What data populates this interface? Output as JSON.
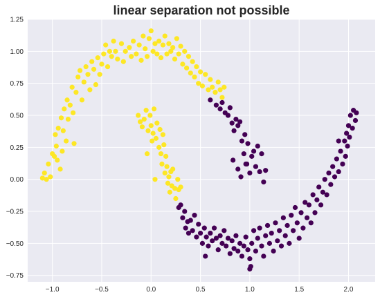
{
  "chart_data": {
    "type": "scatter",
    "title": "linear separation not possible",
    "xlabel": "",
    "ylabel": "",
    "xlim": [
      -1.25,
      2.27
    ],
    "ylim": [
      -0.8,
      1.25
    ],
    "xticks": [
      -1.0,
      -0.5,
      0.0,
      0.5,
      1.0,
      1.5,
      2.0
    ],
    "xtick_labels": [
      "−1.0",
      "−0.5",
      "0.0",
      "0.5",
      "1.0",
      "1.5",
      "2.0"
    ],
    "yticks": [
      -0.75,
      -0.5,
      -0.25,
      0.0,
      0.25,
      0.5,
      0.75,
      1.0,
      1.25
    ],
    "ytick_labels": [
      "−0.75",
      "−0.50",
      "−0.25",
      "0.00",
      "0.25",
      "0.50",
      "0.75",
      "1.00",
      "1.25"
    ],
    "grid": true,
    "background_color": "#eaeaf2",
    "grid_color": "#ffffff",
    "series": [
      {
        "color": "#fde725",
        "points": [
          [
            -1.1,
            0.01
          ],
          [
            -1.08,
            0.05
          ],
          [
            -1.06,
            0.0
          ],
          [
            -1.04,
            0.12
          ],
          [
            -1.02,
            0.02
          ],
          [
            -1.0,
            0.2
          ],
          [
            -0.98,
            0.18
          ],
          [
            -0.96,
            0.26
          ],
          [
            -0.97,
            0.35
          ],
          [
            -0.95,
            0.15
          ],
          [
            -0.94,
            0.4
          ],
          [
            -0.92,
            0.08
          ],
          [
            -0.91,
            0.48
          ],
          [
            -0.9,
            0.22
          ],
          [
            -0.89,
            0.38
          ],
          [
            -0.88,
            0.55
          ],
          [
            -0.86,
            0.3
          ],
          [
            -0.85,
            0.62
          ],
          [
            -0.84,
            0.47
          ],
          [
            -0.82,
            0.58
          ],
          [
            -0.8,
            0.72
          ],
          [
            -0.79,
            0.52
          ],
          [
            -0.78,
            0.28
          ],
          [
            -0.76,
            0.68
          ],
          [
            -0.74,
            0.8
          ],
          [
            -0.72,
            0.85
          ],
          [
            -0.7,
            0.62
          ],
          [
            -0.68,
            0.76
          ],
          [
            -0.66,
            0.88
          ],
          [
            -0.64,
            0.82
          ],
          [
            -0.62,
            0.7
          ],
          [
            -0.6,
            0.92
          ],
          [
            -0.58,
            0.86
          ],
          [
            -0.56,
            0.74
          ],
          [
            -0.54,
            0.95
          ],
          [
            -0.52,
            0.82
          ],
          [
            -0.5,
            0.9
          ],
          [
            -0.48,
            0.98
          ],
          [
            -0.46,
            1.05
          ],
          [
            -0.44,
            0.88
          ],
          [
            -0.42,
            1.0
          ],
          [
            -0.4,
            0.96
          ],
          [
            -0.38,
            1.08
          ],
          [
            -0.36,
            1.0
          ],
          [
            -0.34,
            0.94
          ],
          [
            -0.3,
            1.06
          ],
          [
            -0.28,
            0.92
          ],
          [
            -0.26,
            1.0
          ],
          [
            -0.22,
            1.03
          ],
          [
            -0.2,
            0.96
          ],
          [
            -0.18,
            1.08
          ],
          [
            -0.15,
            0.98
          ],
          [
            -0.12,
            1.05
          ],
          [
            -0.1,
            0.93
          ],
          [
            -0.08,
            1.12
          ],
          [
            -0.06,
            1.02
          ],
          [
            -0.04,
            0.96
          ],
          [
            -0.02,
            1.1
          ],
          [
            0.0,
            1.16
          ],
          [
            0.02,
            1.0
          ],
          [
            0.04,
            1.06
          ],
          [
            0.06,
            0.98
          ],
          [
            0.08,
            1.08
          ],
          [
            0.1,
            0.95
          ],
          [
            0.12,
            1.05
          ],
          [
            0.14,
            1.12
          ],
          [
            0.16,
            0.98
          ],
          [
            0.18,
            1.06
          ],
          [
            0.2,
            1.0
          ],
          [
            0.22,
            1.03
          ],
          [
            0.24,
            0.94
          ],
          [
            0.26,
            1.1
          ],
          [
            0.28,
            0.98
          ],
          [
            0.3,
            1.04
          ],
          [
            0.32,
            0.9
          ],
          [
            0.34,
            1.0
          ],
          [
            0.36,
            0.87
          ],
          [
            0.38,
            0.96
          ],
          [
            0.4,
            0.83
          ],
          [
            0.42,
            0.92
          ],
          [
            0.44,
            0.8
          ],
          [
            0.46,
            0.88
          ],
          [
            0.48,
            0.75
          ],
          [
            0.5,
            0.84
          ],
          [
            0.52,
            0.73
          ],
          [
            0.55,
            0.82
          ],
          [
            0.58,
            0.7
          ],
          [
            0.6,
            0.78
          ],
          [
            0.62,
            0.72
          ],
          [
            0.65,
            0.68
          ],
          [
            0.68,
            0.76
          ],
          [
            0.7,
            0.7
          ],
          [
            0.72,
            0.64
          ],
          [
            0.74,
            0.72
          ],
          [
            -0.13,
            0.5
          ],
          [
            -0.11,
            0.45
          ],
          [
            -0.09,
            0.41
          ],
          [
            -0.07,
            0.47
          ],
          [
            -0.05,
            0.54
          ],
          [
            -0.03,
            0.38
          ],
          [
            -0.01,
            0.5
          ],
          [
            0.0,
            0.42
          ],
          [
            0.02,
            0.36
          ],
          [
            0.03,
            0.55
          ],
          [
            0.05,
            0.32
          ],
          [
            0.06,
            0.44
          ],
          [
            0.08,
            0.25
          ],
          [
            0.09,
            0.39
          ],
          [
            0.1,
            0.2
          ],
          [
            0.12,
            0.35
          ],
          [
            0.11,
            0.12
          ],
          [
            0.13,
            0.27
          ],
          [
            0.14,
            0.05
          ],
          [
            0.15,
            0.18
          ],
          [
            0.16,
            0.1
          ],
          [
            0.17,
            -0.03
          ],
          [
            0.18,
            0.02
          ],
          [
            0.19,
            -0.1
          ],
          [
            0.2,
            0.06
          ],
          [
            0.21,
            -0.05
          ],
          [
            0.22,
            0.08
          ],
          [
            0.24,
            -0.07
          ],
          [
            0.25,
            -0.15
          ],
          [
            0.27,
            0.0
          ],
          [
            0.28,
            -0.08
          ],
          [
            0.3,
            -0.06
          ],
          [
            -0.04,
            0.2
          ],
          [
            0.01,
            0.3
          ],
          [
            0.04,
            0.0
          ]
        ]
      },
      {
        "color": "#440154",
        "points": [
          [
            0.6,
            0.62
          ],
          [
            0.66,
            0.58
          ],
          [
            0.7,
            0.55
          ],
          [
            0.72,
            0.6
          ],
          [
            0.75,
            0.52
          ],
          [
            0.78,
            0.5
          ],
          [
            0.8,
            0.56
          ],
          [
            0.82,
            0.44
          ],
          [
            0.84,
            0.38
          ],
          [
            0.86,
            0.47
          ],
          [
            0.88,
            0.42
          ],
          [
            0.9,
            0.45
          ],
          [
            0.92,
            0.3
          ],
          [
            0.94,
            0.2
          ],
          [
            0.95,
            0.35
          ],
          [
            0.97,
            0.12
          ],
          [
            0.98,
            0.28
          ],
          [
            1.0,
            0.05
          ],
          [
            1.02,
            0.18
          ],
          [
            1.04,
            0.22
          ],
          [
            1.06,
            0.1
          ],
          [
            1.08,
            0.26
          ],
          [
            1.1,
            0.06
          ],
          [
            1.12,
            0.2
          ],
          [
            1.14,
            -0.02
          ],
          [
            1.16,
            0.07
          ],
          [
            0.83,
            0.15
          ],
          [
            0.88,
            0.08
          ],
          [
            0.91,
            0.02
          ],
          [
            0.96,
            0.12
          ],
          [
            0.28,
            -0.22
          ],
          [
            0.3,
            -0.2
          ],
          [
            0.32,
            -0.3
          ],
          [
            0.34,
            -0.25
          ],
          [
            0.35,
            -0.38
          ],
          [
            0.37,
            -0.33
          ],
          [
            0.38,
            -0.42
          ],
          [
            0.4,
            -0.32
          ],
          [
            0.42,
            -0.4
          ],
          [
            0.44,
            -0.28
          ],
          [
            0.46,
            -0.45
          ],
          [
            0.48,
            -0.35
          ],
          [
            0.5,
            -0.42
          ],
          [
            0.52,
            -0.5
          ],
          [
            0.54,
            -0.38
          ],
          [
            0.56,
            -0.45
          ],
          [
            0.58,
            -0.52
          ],
          [
            0.6,
            -0.42
          ],
          [
            0.62,
            -0.48
          ],
          [
            0.64,
            -0.38
          ],
          [
            0.66,
            -0.46
          ],
          [
            0.68,
            -0.55
          ],
          [
            0.7,
            -0.44
          ],
          [
            0.72,
            -0.5
          ],
          [
            0.74,
            -0.4
          ],
          [
            0.76,
            -0.52
          ],
          [
            0.78,
            -0.46
          ],
          [
            0.8,
            -0.58
          ],
          [
            0.82,
            -0.48
          ],
          [
            0.84,
            -0.54
          ],
          [
            0.86,
            -0.44
          ],
          [
            0.88,
            -0.56
          ],
          [
            0.9,
            -0.5
          ],
          [
            0.92,
            -0.6
          ],
          [
            0.94,
            -0.52
          ],
          [
            0.96,
            -0.45
          ],
          [
            0.98,
            -0.55
          ],
          [
            1.0,
            -0.62
          ],
          [
            1.02,
            -0.5
          ],
          [
            1.04,
            -0.4
          ],
          [
            1.06,
            -0.56
          ],
          [
            1.08,
            -0.46
          ],
          [
            1.1,
            -0.38
          ],
          [
            1.12,
            -0.52
          ],
          [
            1.14,
            -0.6
          ],
          [
            1.16,
            -0.44
          ],
          [
            1.18,
            -0.36
          ],
          [
            1.2,
            -0.5
          ],
          [
            1.22,
            -0.42
          ],
          [
            1.24,
            -0.56
          ],
          [
            1.26,
            -0.34
          ],
          [
            1.28,
            -0.48
          ],
          [
            1.3,
            -0.4
          ],
          [
            1.32,
            -0.52
          ],
          [
            1.34,
            -0.3
          ],
          [
            1.36,
            -0.44
          ],
          [
            1.38,
            -0.36
          ],
          [
            1.4,
            -0.5
          ],
          [
            1.42,
            -0.28
          ],
          [
            1.44,
            -0.4
          ],
          [
            1.46,
            -0.22
          ],
          [
            1.48,
            -0.34
          ],
          [
            1.5,
            -0.46
          ],
          [
            1.52,
            -0.26
          ],
          [
            1.54,
            -0.38
          ],
          [
            1.56,
            -0.18
          ],
          [
            1.58,
            -0.3
          ],
          [
            1.6,
            -0.2
          ],
          [
            1.62,
            -0.34
          ],
          [
            1.64,
            -0.12
          ],
          [
            1.66,
            -0.26
          ],
          [
            1.68,
            -0.16
          ],
          [
            1.7,
            -0.06
          ],
          [
            1.72,
            -0.2
          ],
          [
            1.74,
            -0.1
          ],
          [
            1.76,
            0.0
          ],
          [
            1.78,
            -0.12
          ],
          [
            1.8,
            0.05
          ],
          [
            1.82,
            -0.04
          ],
          [
            1.84,
            0.1
          ],
          [
            1.86,
            0.02
          ],
          [
            1.88,
            0.16
          ],
          [
            1.9,
            0.06
          ],
          [
            1.92,
            0.22
          ],
          [
            1.94,
            0.12
          ],
          [
            1.96,
            0.3
          ],
          [
            1.97,
            0.18
          ],
          [
            1.98,
            0.36
          ],
          [
            1.99,
            0.26
          ],
          [
            2.0,
            0.42
          ],
          [
            2.01,
            0.33
          ],
          [
            2.02,
            0.5
          ],
          [
            2.04,
            0.4
          ],
          [
            2.05,
            0.54
          ],
          [
            2.07,
            0.46
          ],
          [
            2.08,
            0.52
          ],
          [
            1.0,
            -0.7
          ],
          [
            1.01,
            -0.68
          ],
          [
            0.55,
            -0.6
          ],
          [
            1.9,
            0.3
          ]
        ]
      }
    ]
  }
}
